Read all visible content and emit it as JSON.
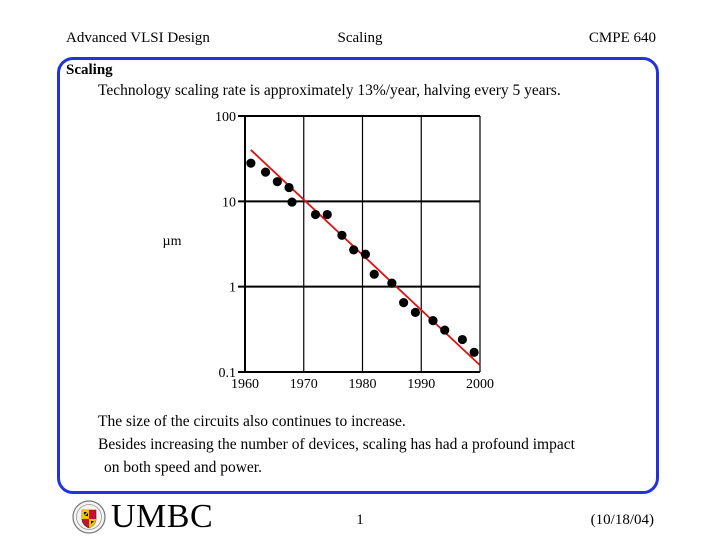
{
  "header": {
    "left": "Advanced VLSI Design",
    "center": "Scaling",
    "right": "CMPE 640"
  },
  "slide": {
    "title": "Scaling",
    "subtitle": "Technology scaling rate is approximately 13%/year, halving every 5 years.",
    "paragraphs": [
      "The size of the circuits also continues to increase.",
      "Besides increasing the number of devices, scaling has had a profound impact",
      "on both speed and power."
    ]
  },
  "chart_data": {
    "type": "scatter",
    "title": "",
    "xlabel": "",
    "ylabel": "µm",
    "x_ticks": [
      "1960",
      "1970",
      "1980",
      "1990",
      "2000"
    ],
    "y_ticks": [
      "100",
      "10",
      "1",
      "0.1"
    ],
    "xlim": [
      1960,
      2000
    ],
    "ylim": [
      0.1,
      100
    ],
    "yscale": "log",
    "grid": true,
    "points": [
      {
        "x": 1961,
        "y": 28
      },
      {
        "x": 1963.5,
        "y": 22
      },
      {
        "x": 1965.5,
        "y": 17
      },
      {
        "x": 1967.5,
        "y": 14.5
      },
      {
        "x": 1968,
        "y": 9.8
      },
      {
        "x": 1972,
        "y": 7
      },
      {
        "x": 1974,
        "y": 7
      },
      {
        "x": 1976.5,
        "y": 4
      },
      {
        "x": 1978.5,
        "y": 2.7
      },
      {
        "x": 1980.5,
        "y": 2.4
      },
      {
        "x": 1982,
        "y": 1.4
      },
      {
        "x": 1985,
        "y": 1.1
      },
      {
        "x": 1987,
        "y": 0.65
      },
      {
        "x": 1989,
        "y": 0.5
      },
      {
        "x": 1992,
        "y": 0.4
      },
      {
        "x": 1994,
        "y": 0.31
      },
      {
        "x": 1997,
        "y": 0.24
      },
      {
        "x": 1999,
        "y": 0.17
      }
    ],
    "trend_line": {
      "x": [
        1961,
        2000
      ],
      "y": [
        40,
        0.12
      ],
      "color": "#dd1111"
    },
    "point_color": "#000000"
  },
  "footer": {
    "logo_text": "UMBC",
    "page": "1",
    "date": "(10/18/04)"
  }
}
